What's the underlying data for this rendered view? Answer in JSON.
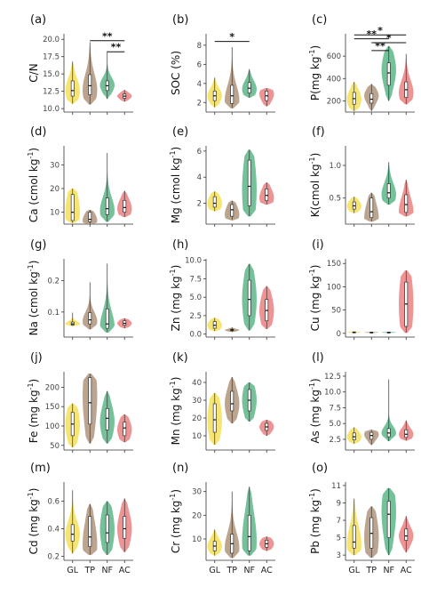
{
  "categories": [
    "GL",
    "TP",
    "NF",
    "AC"
  ],
  "colors": {
    "GL": "#F5E46B",
    "TP": "#B8A08A",
    "NF": "#6DBE95",
    "AC": "#EE8E8E"
  },
  "chart_data": [
    {
      "type": "violin",
      "panel": "(a)",
      "ylabel": "C/N",
      "ylabel_sup": "",
      "ylim": [
        9.5,
        20.8
      ],
      "yticks": [
        10.0,
        12.5,
        15.0,
        17.5,
        20.0
      ],
      "ytick_labels": [
        "10.0",
        "12.5",
        "15.0",
        "17.5",
        "20.0"
      ],
      "series": [
        {
          "category": "GL",
          "min": 10.7,
          "q1": 11.8,
          "median": 12.6,
          "q3": 14.0,
          "max": 16.8,
          "mode": 12.6
        },
        {
          "category": "TP",
          "min": 10.6,
          "q1": 12.0,
          "median": 13.3,
          "q3": 14.9,
          "max": 19.6,
          "mode": 12.6
        },
        {
          "category": "NF",
          "min": 11.4,
          "q1": 12.6,
          "median": 13.3,
          "q3": 14.0,
          "max": 18.3,
          "mode": 13.4
        },
        {
          "category": "AC",
          "min": 11.0,
          "q1": 11.5,
          "median": 11.8,
          "q3": 12.1,
          "max": 12.7,
          "mode": 11.8
        }
      ],
      "significance": [
        {
          "from": "TP",
          "to": "AC",
          "label": "**",
          "y": 19.8
        },
        {
          "from": "NF",
          "to": "AC",
          "label": "**",
          "y": 18.2
        }
      ]
    },
    {
      "type": "violin",
      "panel": "(b)",
      "ylabel": "SOC (%)",
      "ylabel_sup": "",
      "ylim": [
        1.0,
        9.2
      ],
      "yticks": [
        2,
        4,
        6,
        8
      ],
      "ytick_labels": [
        "2",
        "4",
        "6",
        "8"
      ],
      "series": [
        {
          "category": "GL",
          "min": 1.5,
          "q1": 2.2,
          "median": 2.7,
          "q3": 3.2,
          "max": 4.6,
          "mode": 2.7
        },
        {
          "category": "TP",
          "min": 1.4,
          "q1": 1.9,
          "median": 2.7,
          "q3": 3.8,
          "max": 7.8,
          "mode": 2.2
        },
        {
          "category": "NF",
          "min": 2.5,
          "q1": 3.0,
          "median": 3.5,
          "q3": 4.1,
          "max": 5.5,
          "mode": 3.4
        },
        {
          "category": "AC",
          "min": 1.6,
          "q1": 2.2,
          "median": 2.7,
          "q3": 3.2,
          "max": 3.5,
          "mode": 2.9
        }
      ],
      "significance": [
        {
          "from": "GL",
          "to": "NF",
          "label": "*",
          "y": 8.4
        }
      ]
    },
    {
      "type": "violin",
      "panel": "(c)",
      "ylabel": "P(mg kg",
      "ylabel_sup": "-1",
      "ylim": [
        100,
        800
      ],
      "yticks": [
        200,
        400,
        600
      ],
      "ytick_labels": [
        "200",
        "400",
        "600"
      ],
      "series": [
        {
          "category": "GL",
          "min": 110,
          "q1": 170,
          "median": 220,
          "q3": 275,
          "max": 370,
          "mode": 215
        },
        {
          "category": "TP",
          "min": 110,
          "q1": 180,
          "median": 215,
          "q3": 265,
          "max": 350,
          "mode": 250
        },
        {
          "category": "NF",
          "min": 200,
          "q1": 340,
          "median": 450,
          "q3": 540,
          "max": 690,
          "mode": 480
        },
        {
          "category": "AC",
          "min": 170,
          "q1": 230,
          "median": 300,
          "q3": 370,
          "max": 620,
          "mode": 270
        }
      ],
      "significance": [
        {
          "from": "GL",
          "to": "AC",
          "label": "*",
          "y": 790
        },
        {
          "from": "GL",
          "to": "NF",
          "label": "**",
          "y": 755
        },
        {
          "from": "TP",
          "to": "AC",
          "label": "*",
          "y": 720
        },
        {
          "from": "TP",
          "to": "NF",
          "label": "**",
          "y": 650
        }
      ]
    },
    {
      "type": "violin",
      "panel": "(d)",
      "ylabel": "Ca (cmol kg",
      "ylabel_sup": "-1",
      "ylim": [
        5,
        38
      ],
      "yticks": [
        10,
        20,
        30
      ],
      "ytick_labels": [
        "10",
        "20",
        "30"
      ],
      "series": [
        {
          "category": "GL",
          "min": 5.5,
          "q1": 6.5,
          "median": 10.0,
          "q3": 17.5,
          "max": 20.0,
          "mode": 10.0
        },
        {
          "category": "TP",
          "min": 5.0,
          "q1": 6.0,
          "median": 7.0,
          "q3": 10.0,
          "max": 11.0,
          "mode": 6.5
        },
        {
          "category": "NF",
          "min": 6.0,
          "q1": 9.0,
          "median": 11.5,
          "q3": 16.0,
          "max": 35.0,
          "mode": 10.5
        },
        {
          "category": "AC",
          "min": 8.0,
          "q1": 10.0,
          "median": 12.0,
          "q3": 15.0,
          "max": 19.0,
          "mode": 11.5
        }
      ],
      "significance": []
    },
    {
      "type": "violin",
      "panel": "(e)",
      "ylabel": "Mg (cmol kg",
      "ylabel_sup": "-1",
      "ylim": [
        0.4,
        6.4
      ],
      "yticks": [
        2,
        4,
        6
      ],
      "ytick_labels": [
        "2",
        "4",
        "6"
      ],
      "series": [
        {
          "category": "GL",
          "min": 1.4,
          "q1": 1.7,
          "median": 2.0,
          "q3": 2.5,
          "max": 2.9,
          "mode": 2.0
        },
        {
          "category": "TP",
          "min": 0.7,
          "q1": 1.0,
          "median": 1.5,
          "q3": 1.9,
          "max": 2.2,
          "mode": 1.1
        },
        {
          "category": "NF",
          "min": 1.0,
          "q1": 1.8,
          "median": 3.3,
          "q3": 5.3,
          "max": 6.1,
          "mode": 3.0
        },
        {
          "category": "AC",
          "min": 1.9,
          "q1": 2.2,
          "median": 2.6,
          "q3": 3.1,
          "max": 3.6,
          "mode": 2.4
        }
      ],
      "significance": []
    },
    {
      "type": "violin",
      "panel": "(f)",
      "ylabel": "K(cmol kg",
      "ylabel_sup": "-1",
      "ylim": [
        0.1,
        1.3
      ],
      "yticks": [
        0.5,
        1.0
      ],
      "ytick_labels": [
        "0.5",
        "1.0"
      ],
      "series": [
        {
          "category": "GL",
          "min": 0.27,
          "q1": 0.33,
          "median": 0.38,
          "q3": 0.44,
          "max": 0.52,
          "mode": 0.38
        },
        {
          "category": "TP",
          "min": 0.14,
          "q1": 0.2,
          "median": 0.29,
          "q3": 0.5,
          "max": 0.58,
          "mode": 0.18
        },
        {
          "category": "NF",
          "min": 0.4,
          "q1": 0.5,
          "median": 0.58,
          "q3": 0.72,
          "max": 1.05,
          "mode": 0.55
        },
        {
          "category": "AC",
          "min": 0.22,
          "q1": 0.28,
          "median": 0.4,
          "q3": 0.55,
          "max": 0.78,
          "mode": 0.28
        }
      ],
      "significance": []
    },
    {
      "type": "violin",
      "panel": "(g)",
      "ylabel": "Na (cmol kg",
      "ylabel_sup": "-1",
      "ylim": [
        0.02,
        0.27
      ],
      "yticks": [
        0.1,
        0.2
      ],
      "ytick_labels": [
        "0.1",
        "0.2"
      ],
      "series": [
        {
          "category": "GL",
          "min": 0.055,
          "q1": 0.058,
          "median": 0.062,
          "q3": 0.068,
          "max": 0.098,
          "mode": 0.062
        },
        {
          "category": "TP",
          "min": 0.045,
          "q1": 0.062,
          "median": 0.075,
          "q3": 0.098,
          "max": 0.195,
          "mode": 0.07
        },
        {
          "category": "NF",
          "min": 0.035,
          "q1": 0.048,
          "median": 0.062,
          "q3": 0.11,
          "max": 0.255,
          "mode": 0.05
        },
        {
          "category": "AC",
          "min": 0.048,
          "q1": 0.058,
          "median": 0.064,
          "q3": 0.072,
          "max": 0.08,
          "mode": 0.064
        }
      ],
      "significance": []
    },
    {
      "type": "violin",
      "panel": "(h)",
      "ylabel": "Zn (mg kg",
      "ylabel_sup": "-1",
      "ylim": [
        -0.4,
        10.2
      ],
      "yticks": [
        0.0,
        2.5,
        5.0,
        7.5,
        10.0
      ],
      "ytick_labels": [
        "0.0",
        "2.5",
        "5.0",
        "7.5",
        "10.0"
      ],
      "series": [
        {
          "category": "GL",
          "min": 0.4,
          "q1": 0.8,
          "median": 1.2,
          "q3": 1.7,
          "max": 2.2,
          "mode": 1.2
        },
        {
          "category": "TP",
          "min": 0.3,
          "q1": 0.45,
          "median": 0.55,
          "q3": 0.65,
          "max": 0.9,
          "mode": 0.55
        },
        {
          "category": "NF",
          "min": 0.5,
          "q1": 2.5,
          "median": 4.7,
          "q3": 7.3,
          "max": 9.5,
          "mode": 4.7
        },
        {
          "category": "AC",
          "min": 0.7,
          "q1": 1.8,
          "median": 3.2,
          "q3": 4.7,
          "max": 6.5,
          "mode": 3.2
        }
      ],
      "significance": []
    },
    {
      "type": "violin",
      "panel": "(i)",
      "ylabel": "Cu (mg kg",
      "ylabel_sup": "-1",
      "ylim": [
        -8,
        160
      ],
      "yticks": [
        0,
        50,
        100,
        150
      ],
      "ytick_labels": [
        "0",
        "50",
        "100",
        "150"
      ],
      "series": [
        {
          "category": "GL",
          "min": 1.0,
          "q1": 1.8,
          "median": 2.3,
          "q3": 3.0,
          "max": 4.0,
          "mode": 2.3
        },
        {
          "category": "TP",
          "min": 1.0,
          "q1": 1.5,
          "median": 2.0,
          "q3": 2.5,
          "max": 3.0,
          "mode": 2.0
        },
        {
          "category": "NF",
          "min": 1.0,
          "q1": 1.5,
          "median": 2.0,
          "q3": 2.6,
          "max": 3.0,
          "mode": 2.0
        },
        {
          "category": "AC",
          "min": 1.0,
          "q1": 15,
          "median": 63,
          "q3": 110,
          "max": 135,
          "mode": 63
        }
      ],
      "significance": []
    },
    {
      "type": "violin",
      "panel": "(j)",
      "ylabel": "Fe (mg kg",
      "ylabel_sup": "-1",
      "ylim": [
        38,
        240
      ],
      "yticks": [
        50,
        100,
        150,
        200
      ],
      "ytick_labels": [
        "50",
        "100",
        "150",
        "200"
      ],
      "series": [
        {
          "category": "GL",
          "min": 45,
          "q1": 75,
          "median": 105,
          "q3": 135,
          "max": 158,
          "mode": 105
        },
        {
          "category": "TP",
          "min": 55,
          "q1": 105,
          "median": 160,
          "q3": 225,
          "max": 235,
          "mode": 180
        },
        {
          "category": "NF",
          "min": 55,
          "q1": 90,
          "median": 120,
          "q3": 145,
          "max": 190,
          "mode": 110
        },
        {
          "category": "AC",
          "min": 58,
          "q1": 75,
          "median": 95,
          "q3": 110,
          "max": 130,
          "mode": 90
        }
      ],
      "significance": []
    },
    {
      "type": "violin",
      "panel": "(k)",
      "ylabel": "Mn (mg kg",
      "ylabel_sup": "-1",
      "ylim": [
        2,
        46
      ],
      "yticks": [
        10,
        20,
        30,
        40
      ],
      "ytick_labels": [
        "10",
        "20",
        "30",
        "40"
      ],
      "series": [
        {
          "category": "GL",
          "min": 5,
          "q1": 12,
          "median": 19,
          "q3": 28,
          "max": 34,
          "mode": 19
        },
        {
          "category": "TP",
          "min": 17,
          "q1": 24,
          "median": 28,
          "q3": 35,
          "max": 43,
          "mode": 28
        },
        {
          "category": "NF",
          "min": 18,
          "q1": 24,
          "median": 30,
          "q3": 36,
          "max": 40,
          "mode": 30
        },
        {
          "category": "AC",
          "min": 10,
          "q1": 13,
          "median": 15,
          "q3": 17,
          "max": 19,
          "mode": 15
        }
      ],
      "significance": []
    },
    {
      "type": "violin",
      "panel": "(l)",
      "ylabel": "As (mg kg",
      "ylabel_sup": "-1",
      "ylim": [
        0.8,
        13.2
      ],
      "yticks": [
        2.5,
        5.0,
        7.5,
        10.0,
        12.5
      ],
      "ytick_labels": [
        "2.5",
        "5.0",
        "7.5",
        "10.0",
        "12.5"
      ],
      "series": [
        {
          "category": "GL",
          "min": 1.8,
          "q1": 2.4,
          "median": 2.9,
          "q3": 3.5,
          "max": 4.4,
          "mode": 2.9
        },
        {
          "category": "TP",
          "min": 1.6,
          "q1": 2.5,
          "median": 3.1,
          "q3": 3.6,
          "max": 4.0,
          "mode": 3.3
        },
        {
          "category": "NF",
          "min": 2.2,
          "q1": 2.9,
          "median": 3.5,
          "q3": 4.2,
          "max": 12.0,
          "mode": 3.5
        },
        {
          "category": "AC",
          "min": 2.3,
          "q1": 2.8,
          "median": 3.3,
          "q3": 4.0,
          "max": 5.5,
          "mode": 3.3
        }
      ],
      "significance": []
    },
    {
      "type": "violin",
      "panel": "(m)",
      "ylabel": "Cd (mg kg",
      "ylabel_sup": "-1",
      "ylim": [
        0.17,
        0.74
      ],
      "yticks": [
        0.2,
        0.4,
        0.6
      ],
      "ytick_labels": [
        "0.2",
        "0.4",
        "0.6"
      ],
      "series": [
        {
          "category": "GL",
          "min": 0.22,
          "q1": 0.31,
          "median": 0.36,
          "q3": 0.43,
          "max": 0.68,
          "mode": 0.36
        },
        {
          "category": "TP",
          "min": 0.21,
          "q1": 0.27,
          "median": 0.34,
          "q3": 0.49,
          "max": 0.58,
          "mode": 0.28
        },
        {
          "category": "NF",
          "min": 0.21,
          "q1": 0.3,
          "median": 0.37,
          "q3": 0.5,
          "max": 0.6,
          "mode": 0.4
        },
        {
          "category": "AC",
          "min": 0.23,
          "q1": 0.33,
          "median": 0.4,
          "q3": 0.49,
          "max": 0.62,
          "mode": 0.4
        }
      ],
      "significance": []
    },
    {
      "type": "violin",
      "panel": "(n)",
      "ylabel": "Cr (mg kg",
      "ylabel_sup": "-1",
      "ylim": [
        1,
        34
      ],
      "yticks": [
        10,
        20,
        30
      ],
      "ytick_labels": [
        "10",
        "20",
        "30"
      ],
      "series": [
        {
          "category": "GL",
          "min": 3,
          "q1": 5,
          "median": 7,
          "q3": 9,
          "max": 14,
          "mode": 7
        },
        {
          "category": "TP",
          "min": 2,
          "q1": 4,
          "median": 8,
          "q3": 12,
          "max": 30,
          "mode": 6
        },
        {
          "category": "NF",
          "min": 3,
          "q1": 5,
          "median": 11,
          "q3": 20,
          "max": 32,
          "mode": 9
        },
        {
          "category": "AC",
          "min": 5,
          "q1": 6.5,
          "median": 8,
          "q3": 9.5,
          "max": 11,
          "mode": 8
        }
      ],
      "significance": []
    },
    {
      "type": "violin",
      "panel": "(o)",
      "ylabel": "Pb (mg kg",
      "ylabel_sup": "-1",
      "ylim": [
        2.4,
        11.4
      ],
      "yticks": [
        3,
        5,
        7,
        9,
        11
      ],
      "ytick_labels": [
        "3",
        "5",
        "7",
        "9",
        "11"
      ],
      "series": [
        {
          "category": "GL",
          "min": 3.0,
          "q1": 3.8,
          "median": 4.5,
          "q3": 6.4,
          "max": 9.5,
          "mode": 4.2
        },
        {
          "category": "TP",
          "min": 2.7,
          "q1": 3.8,
          "median": 5.5,
          "q3": 7.3,
          "max": 8.6,
          "mode": 5.0
        },
        {
          "category": "NF",
          "min": 3.0,
          "q1": 5.0,
          "median": 7.7,
          "q3": 9.2,
          "max": 10.7,
          "mode": 8.0
        },
        {
          "category": "AC",
          "min": 3.3,
          "q1": 4.7,
          "median": 5.2,
          "q3": 6.0,
          "max": 7.5,
          "mode": 5.2
        }
      ],
      "significance": []
    }
  ]
}
